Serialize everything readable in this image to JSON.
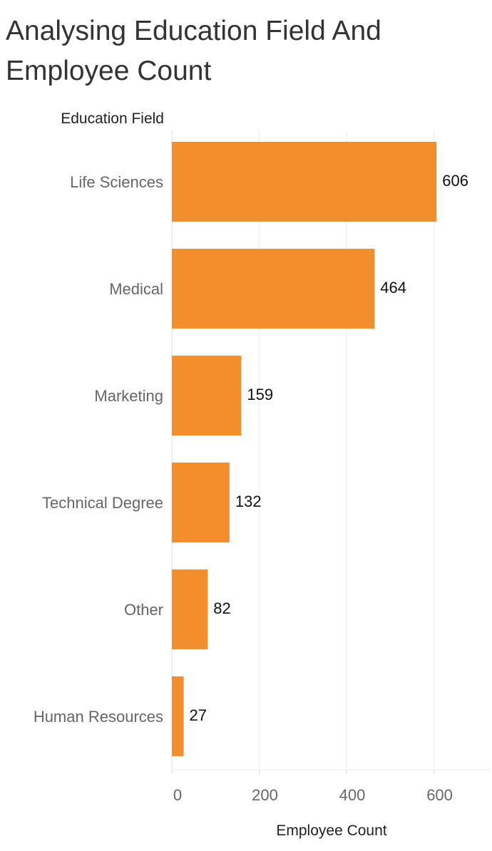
{
  "chart_data": {
    "type": "bar",
    "orientation": "horizontal",
    "title": "Analysing Education Field And Employee Count",
    "row_header": "Education Field",
    "xlabel": "Employee Count",
    "categories": [
      "Life Sciences",
      "Medical",
      "Marketing",
      "Technical Degree",
      "Other",
      "Human Resources"
    ],
    "values": [
      606,
      464,
      159,
      132,
      82,
      27
    ],
    "xlim": [
      0,
      730
    ],
    "xticks": [
      0,
      200,
      400,
      600
    ],
    "grid": true,
    "legend": "none",
    "bar_color": "#F28E2B"
  }
}
